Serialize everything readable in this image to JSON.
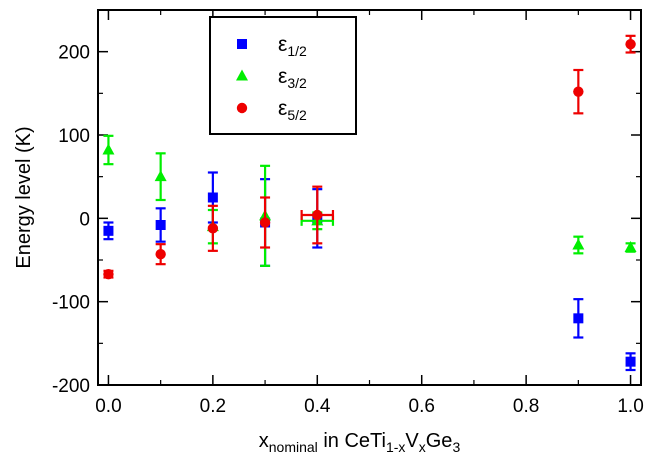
{
  "chart_data": {
    "type": "scatter",
    "title": "",
    "xlabel": {
      "parts": [
        {
          "text": "x",
          "sub": false
        },
        {
          "text": "nominal",
          "sub": true
        },
        {
          "text": " in CeTi",
          "sub": false
        },
        {
          "text": "1-x",
          "sub": true
        },
        {
          "text": "V",
          "sub": false
        },
        {
          "text": "x",
          "sub": true
        },
        {
          "text": "Ge",
          "sub": false
        },
        {
          "text": "3",
          "sub": true
        }
      ]
    },
    "ylabel": "Energy level (K)",
    "xlim": [
      -0.02,
      1.02
    ],
    "ylim": [
      -200,
      250
    ],
    "xticks": [
      0.0,
      0.2,
      0.4,
      0.6,
      0.8,
      1.0
    ],
    "xtick_labels": [
      "0.0",
      "0.2",
      "0.4",
      "0.6",
      "0.8",
      "1.0"
    ],
    "yticks": [
      -200,
      -100,
      0,
      100,
      200
    ],
    "ytick_labels": [
      "-200",
      "-100",
      "0",
      "100",
      "200"
    ],
    "grid": false,
    "legend_position": "top-left",
    "series": [
      {
        "base": "ε",
        "sub": "1/2",
        "marker": "square",
        "color": "#0000ff",
        "points": [
          {
            "x": 0.0,
            "y": -15,
            "yerr": 10
          },
          {
            "x": 0.1,
            "y": -8,
            "yerr": 20
          },
          {
            "x": 0.2,
            "y": 25,
            "yerr": 30
          },
          {
            "x": 0.3,
            "y": -5,
            "yerr": 52
          },
          {
            "x": 0.4,
            "y": 0,
            "yerr": 35
          },
          {
            "x": 0.9,
            "y": -120,
            "yerr": 23
          },
          {
            "x": 1.0,
            "y": -172,
            "yerr": 10
          }
        ]
      },
      {
        "base": "ε",
        "sub": "3/2",
        "marker": "triangle",
        "color": "#00ee00",
        "points": [
          {
            "x": 0.0,
            "y": 82,
            "yerr": 17
          },
          {
            "x": 0.1,
            "y": 50,
            "yerr": 28
          },
          {
            "x": 0.2,
            "y": -10,
            "yerr": 20
          },
          {
            "x": 0.3,
            "y": 3,
            "yerr": 60
          },
          {
            "x": 0.4,
            "y": -3,
            "yerr": 10,
            "xerr": 0.03
          },
          {
            "x": 0.9,
            "y": -32,
            "yerr": 10
          },
          {
            "x": 1.0,
            "y": -35,
            "yerr": 5
          }
        ]
      },
      {
        "base": "ε",
        "sub": "5/2",
        "marker": "circle",
        "color": "#ee0000",
        "points": [
          {
            "x": 0.0,
            "y": -67,
            "yerr": 4
          },
          {
            "x": 0.1,
            "y": -43,
            "yerr": 12
          },
          {
            "x": 0.2,
            "y": -12,
            "yerr": 27
          },
          {
            "x": 0.3,
            "y": -5,
            "yerr": 30
          },
          {
            "x": 0.4,
            "y": 4,
            "yerr": 34,
            "xerr": 0.03
          },
          {
            "x": 0.9,
            "y": 152,
            "yerr": 26
          },
          {
            "x": 1.0,
            "y": 209,
            "yerr": 10
          }
        ]
      }
    ]
  }
}
